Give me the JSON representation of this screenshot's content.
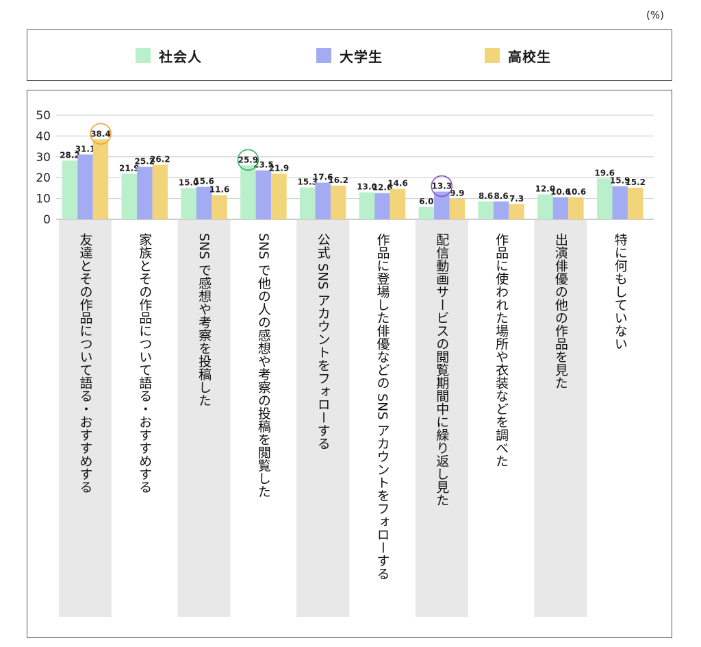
{
  "unit_label": "(%)",
  "colors": {
    "social": "#b9f0cb",
    "univ": "#a3acf3",
    "high": "#f2d57b",
    "band": "#e8e8e8",
    "grid": "#c8c8c8"
  },
  "highlights": [
    {
      "category_index": 0,
      "series_index": 2,
      "color": "#f0a330"
    },
    {
      "category_index": 3,
      "series_index": 0,
      "color": "#3fae63"
    },
    {
      "category_index": 6,
      "series_index": 1,
      "color": "#8a4fc0"
    }
  ],
  "chart_data": {
    "type": "bar",
    "ylim": [
      0,
      50
    ],
    "yticks": [
      0,
      10,
      20,
      30,
      40,
      50
    ],
    "grid": true,
    "legend_placement": "top",
    "categories": [
      "友達とその作品について語る・おすすめする",
      "家族とその作品について語る・おすすめする",
      "SNS で感想や考察を投稿した",
      "SNS で他の人の感想や考察の投稿を閲覧した",
      "公式 SNS アカウントをフォローする",
      "作品に登場した俳優などの SNS アカウントをフォローする",
      "配信動画サービスの閲覧期間中に繰り返し見た",
      "作品に使われた場所や衣装などを調べた",
      "出演俳優の他の作品を見た",
      "特に何もしていない"
    ],
    "series": [
      {
        "name": "社会人",
        "values": [
          28.2,
          21.9,
          15.0,
          25.9,
          15.3,
          13.0,
          6.0,
          8.6,
          12.0,
          19.6
        ]
      },
      {
        "name": "大学生",
        "values": [
          31.1,
          25.2,
          15.6,
          23.5,
          17.6,
          12.6,
          13.3,
          8.6,
          10.6,
          15.9
        ]
      },
      {
        "name": "高校生",
        "values": [
          38.4,
          26.2,
          11.6,
          21.9,
          16.2,
          14.6,
          9.9,
          7.3,
          10.6,
          15.2
        ]
      }
    ]
  }
}
